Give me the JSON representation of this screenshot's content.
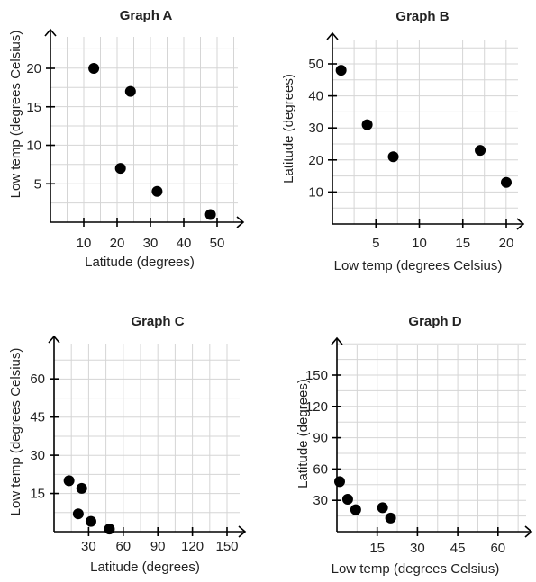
{
  "chart_data": [
    {
      "type": "scatter",
      "title": "Graph A",
      "xlabel": "Latitude (degrees)",
      "ylabel": "Low temp (degrees Celsius)",
      "xlim": [
        0,
        55
      ],
      "ylim": [
        0,
        25
      ],
      "xticks": [
        10,
        20,
        30,
        40,
        50
      ],
      "yticks": [
        5,
        10,
        15,
        20
      ],
      "grid": true,
      "points": [
        {
          "x": 13,
          "y": 20
        },
        {
          "x": 24,
          "y": 17
        },
        {
          "x": 21,
          "y": 7
        },
        {
          "x": 32,
          "y": 4
        },
        {
          "x": 48,
          "y": 1
        }
      ]
    },
    {
      "type": "scatter",
      "title": "Graph B",
      "xlabel": "Low temp (degrees Celsius)",
      "ylabel": "Latitude (degrees)",
      "xlim": [
        0,
        21
      ],
      "ylim": [
        0,
        55
      ],
      "xticks": [
        5,
        10,
        15,
        20
      ],
      "yticks": [
        10,
        20,
        30,
        40,
        50
      ],
      "grid": true,
      "points": [
        {
          "x": 1,
          "y": 48
        },
        {
          "x": 4,
          "y": 31
        },
        {
          "x": 7,
          "y": 21
        },
        {
          "x": 17,
          "y": 23
        },
        {
          "x": 20,
          "y": 13
        }
      ]
    },
    {
      "type": "scatter",
      "title": "Graph C",
      "xlabel": "Latitude (degrees)",
      "ylabel": "Low temp (degrees Celsius)",
      "xlim": [
        0,
        170
      ],
      "ylim": [
        0,
        75
      ],
      "xticks": [
        30,
        60,
        90,
        120,
        150
      ],
      "yticks": [
        15,
        30,
        45,
        60
      ],
      "grid": true,
      "points": [
        {
          "x": 13,
          "y": 20
        },
        {
          "x": 24,
          "y": 17
        },
        {
          "x": 21,
          "y": 7
        },
        {
          "x": 32,
          "y": 4
        },
        {
          "x": 48,
          "y": 1
        }
      ]
    },
    {
      "type": "scatter",
      "title": "Graph D",
      "xlabel": "Low temp (degrees Celsius)",
      "ylabel": "Latitude (degrees)",
      "xlim": [
        0,
        65
      ],
      "ylim": [
        0,
        170
      ],
      "xticks": [
        15,
        30,
        45,
        60
      ],
      "yticks": [
        30,
        60,
        90,
        120,
        150
      ],
      "grid": true,
      "points": [
        {
          "x": 1,
          "y": 48
        },
        {
          "x": 4,
          "y": 31
        },
        {
          "x": 7,
          "y": 21
        },
        {
          "x": 17,
          "y": 23
        },
        {
          "x": 20,
          "y": 13
        }
      ]
    }
  ]
}
